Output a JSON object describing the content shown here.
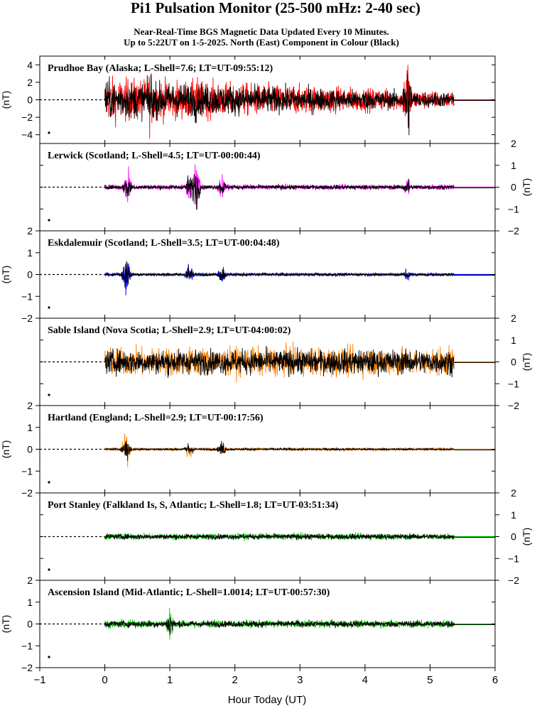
{
  "title": "Pi1 Pulsation Monitor (25-500 mHz: 2-40 sec)",
  "subtitle_line1": "Near-Real-Time BGS Magnetic Data Updated Every 10 Minutes.",
  "subtitle_line2": "Up to 5:22UT on 1-5-2025. North (East) Component in Colour (Black)",
  "chart_data": {
    "type": "line",
    "xlabel": "Hour Today (UT)",
    "xlim": [
      -1,
      6
    ],
    "xticks": [
      -1,
      0,
      1,
      2,
      3,
      4,
      5,
      6
    ],
    "data_start_hour": 0,
    "data_end_hour": 5.37,
    "ylabel": "(nT)",
    "panels": [
      {
        "label": "Prudhoe Bay (Alaska; L-Shell=7.6; LT=UT-09:55:12)",
        "ylim": [
          -5,
          5
        ],
        "yticks": [
          -4,
          -2,
          0,
          2,
          4
        ],
        "axis_side": "left",
        "north_color": "#ff0000",
        "east_color": "#000000",
        "amplitude": 1.6,
        "bursts": [
          {
            "t": 0.3,
            "a": 1.6
          },
          {
            "t": 0.7,
            "a": 2.6
          },
          {
            "t": 1.4,
            "a": 2.2
          },
          {
            "t": 4.65,
            "a": 3.9
          }
        ]
      },
      {
        "label": "Lerwick (Scotland; L-Shell=4.5; LT=UT-00:00:44)",
        "ylim": [
          -2,
          2
        ],
        "yticks": [
          -2,
          -1,
          0,
          1,
          2
        ],
        "axis_side": "right",
        "north_color": "#ff00ff",
        "east_color": "#000000",
        "amplitude": 0.08,
        "bursts": [
          {
            "t": 0.35,
            "a": 0.55
          },
          {
            "t": 1.3,
            "a": 0.5
          },
          {
            "t": 1.4,
            "a": 0.8
          },
          {
            "t": 1.8,
            "a": 0.35
          },
          {
            "t": 4.65,
            "a": 0.35
          }
        ]
      },
      {
        "label": "Eskdalemuir (Scotland; L-Shell=3.5; LT=UT-00:04:48)",
        "ylim": [
          -2,
          2
        ],
        "yticks": [
          -2,
          -1,
          0,
          1,
          2
        ],
        "axis_side": "left",
        "north_color": "#0000ff",
        "east_color": "#000000",
        "amplitude": 0.05,
        "bursts": [
          {
            "t": 0.33,
            "a": 0.6
          },
          {
            "t": 1.3,
            "a": 0.35
          },
          {
            "t": 1.8,
            "a": 0.3
          },
          {
            "t": 4.65,
            "a": 0.2
          }
        ]
      },
      {
        "label": "Sable Island (Nova Scotia; L-Shell=2.9; LT=UT-04:00:02)",
        "ylim": [
          -2,
          2
        ],
        "yticks": [
          -2,
          -1,
          0,
          1,
          2
        ],
        "axis_side": "right",
        "north_color": "#ff8000",
        "east_color": "#000000",
        "amplitude": 0.45,
        "bursts": []
      },
      {
        "label": "Hartland (England; L-Shell=2.9; LT=UT-00:17:56)",
        "ylim": [
          -2,
          2
        ],
        "yticks": [
          -2,
          -1,
          0,
          1,
          2
        ],
        "axis_side": "left",
        "north_color": "#ff8000",
        "east_color": "#000000",
        "amplitude": 0.04,
        "bursts": [
          {
            "t": 0.33,
            "a": 0.5
          },
          {
            "t": 1.3,
            "a": 0.3
          },
          {
            "t": 1.8,
            "a": 0.3
          }
        ]
      },
      {
        "label": "Port Stanley (Falkland Is, S, Atlantic; L-Shell=1.8; LT=UT-03:51:34)",
        "ylim": [
          -2,
          2
        ],
        "yticks": [
          -2,
          -1,
          0,
          1,
          2
        ],
        "axis_side": "right",
        "north_color": "#00cc00",
        "east_color": "#000000",
        "amplitude": 0.1,
        "bursts": []
      },
      {
        "label": "Ascension Island (Mid-Atlantic; L-Shell=1.0014; LT=UT-00:57:30)",
        "ylim": [
          -2,
          2
        ],
        "yticks": [
          -2,
          -1,
          0,
          1,
          2
        ],
        "axis_side": "left",
        "north_color": "#00cc00",
        "east_color": "#000000",
        "amplitude": 0.12,
        "bursts": [
          {
            "t": 1.0,
            "a": 0.5
          }
        ]
      }
    ]
  }
}
